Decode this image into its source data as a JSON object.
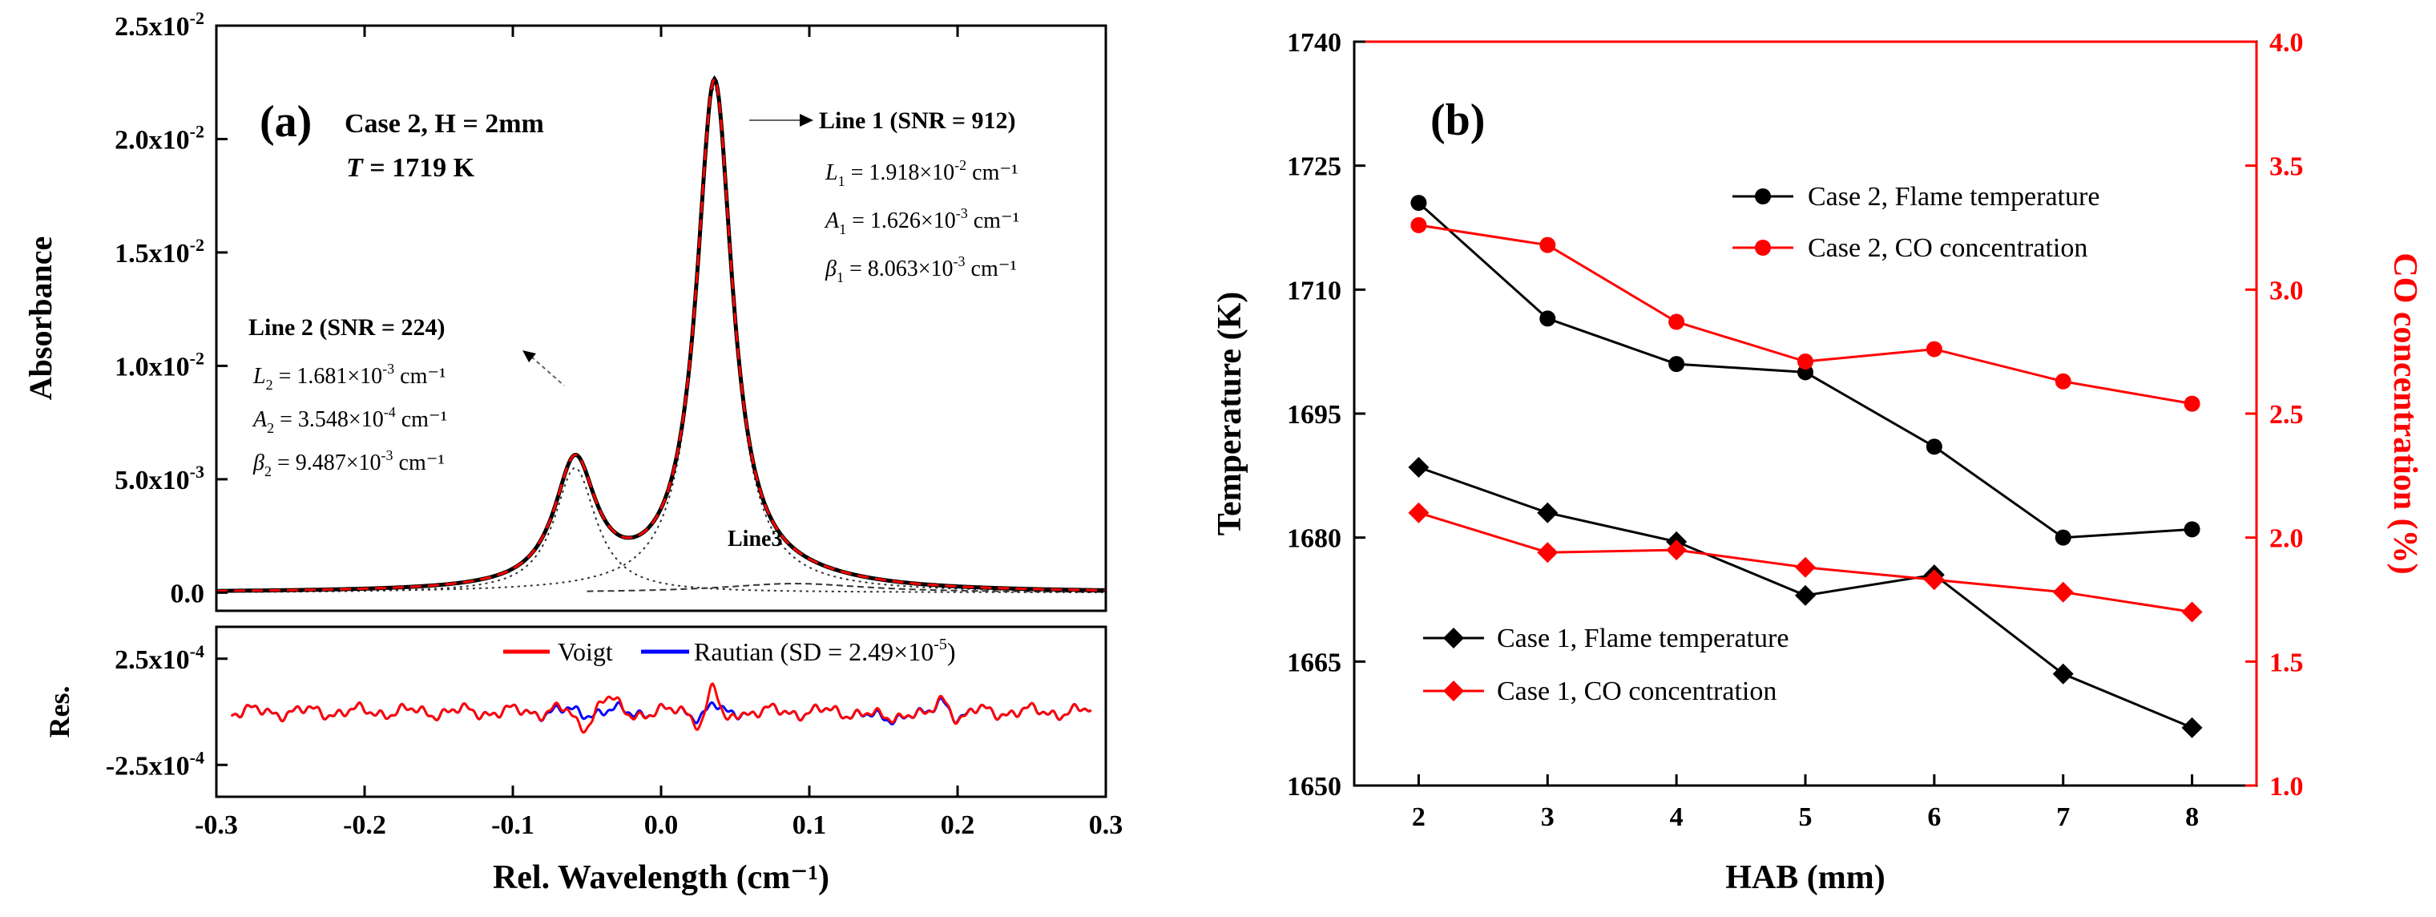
{
  "chart_data": [
    {
      "panel_label": "(a)",
      "type": "line",
      "xlabel": "Rel. Wavelength (cm⁻¹)",
      "ylabel": "Absorbance",
      "xlim": [
        -0.3,
        0.3
      ],
      "ylim": [
        -0.0008,
        0.025
      ],
      "x_ticks": [
        "-0.3",
        "-0.2",
        "-0.1",
        "0.0",
        "0.1",
        "0.2",
        "0.3"
      ],
      "y_ticks": [
        {
          "base": "0.0",
          "exp": ""
        },
        {
          "base": "5.0x10",
          "exp": "-3"
        },
        {
          "base": "1.0x10",
          "exp": "-2"
        },
        {
          "base": "1.5x10",
          "exp": "-2"
        },
        {
          "base": "2.0x10",
          "exp": "-2"
        },
        {
          "base": "2.5x10",
          "exp": "-2"
        }
      ],
      "annotations": {
        "case": "Case 2, H = 2mm",
        "temp_var": "T",
        "temp_val": " = 1719 K",
        "line1_title": "Line 1 (SNR = 912)",
        "line1_params": [
          {
            "sym": "L",
            "sub": "1",
            "val": " = 1.918×10",
            "exp": "-2",
            "unit": " cm⁻¹"
          },
          {
            "sym": "A",
            "sub": "1",
            "val": " = 1.626×10",
            "exp": "-3",
            "unit": " cm⁻¹"
          },
          {
            "sym": "β",
            "sub": "1",
            "val": " = 8.063×10",
            "exp": "-3",
            "unit": " cm⁻¹"
          }
        ],
        "line2_title": "Line 2 (SNR = 224)",
        "line2_params": [
          {
            "sym": "L",
            "sub": "2",
            "val": " = 1.681×10",
            "exp": "-3",
            "unit": " cm⁻¹"
          },
          {
            "sym": "A",
            "sub": "2",
            "val": " = 3.548×10",
            "exp": "-4",
            "unit": " cm⁻¹"
          },
          {
            "sym": "β",
            "sub": "2",
            "val": " = 9.487×10",
            "exp": "-3",
            "unit": " cm⁻¹"
          }
        ],
        "line3": "Line3"
      },
      "peaks": [
        {
          "name": "Line 1",
          "center": 0.036,
          "amplitude": 0.0223,
          "hwhm": 0.0147
        },
        {
          "name": "Line 2",
          "center": -0.058,
          "amplitude": 0.0055,
          "hwhm": 0.017
        },
        {
          "name": "Line3",
          "center": 0.09,
          "amplitude": 0.0004,
          "hwhm": 0.06
        }
      ],
      "series_colors": {
        "measured": "#000000",
        "fit": "#ff0000",
        "components": "#333333"
      },
      "residual": {
        "ylabel": "Res.",
        "y_ticks": [
          {
            "base": "2.5x10",
            "exp": "-4"
          },
          {
            "base": "-2.5x10",
            "exp": "-4"
          }
        ],
        "ylim": [
          -0.0004,
          0.0004
        ],
        "legend": {
          "voigt": "Voigt",
          "rautian": "Rautian (SD = 2.49×10",
          "rautian_exp": "-5",
          "rautian_close": ")"
        },
        "colors": {
          "voigt": "#ff0000",
          "rautian": "#0000ff"
        }
      }
    },
    {
      "panel_label": "(b)",
      "type": "line",
      "xlabel": "HAB (mm)",
      "ylabel": "Temperature (K)",
      "y2label": "CO concentration (%)",
      "x": [
        2,
        3,
        4,
        5,
        6,
        7,
        8
      ],
      "xlim": [
        1.5,
        8.5
      ],
      "ylim": [
        1650,
        1740
      ],
      "y2lim": [
        1.0,
        4.0
      ],
      "y_ticks": [
        "1650",
        "1665",
        "1680",
        "1695",
        "1710",
        "1725",
        "1740"
      ],
      "y2_ticks": [
        "1.0",
        "1.5",
        "2.0",
        "2.5",
        "3.0",
        "3.5",
        "4.0"
      ],
      "series": [
        {
          "name": "Case 2, Flame temperature",
          "axis": "left",
          "marker": "circle",
          "color": "#000000",
          "values": [
            1720.5,
            1706.5,
            1701,
            1700,
            1691,
            1680,
            1681
          ]
        },
        {
          "name": "Case 2, CO concentration",
          "axis": "right",
          "marker": "circle",
          "color": "#ff0000",
          "values": [
            3.26,
            3.18,
            2.87,
            2.71,
            2.76,
            2.63,
            2.54
          ]
        },
        {
          "name": "Case 1, Flame temperature",
          "axis": "left",
          "marker": "diamond",
          "color": "#000000",
          "values": [
            1688.5,
            1683,
            1679.5,
            1673,
            1675.5,
            1663.5,
            1657
          ]
        },
        {
          "name": "Case 1, CO concentration",
          "axis": "right",
          "marker": "diamond",
          "color": "#ff0000",
          "values": [
            2.1,
            1.94,
            1.95,
            1.88,
            1.83,
            1.78,
            1.7
          ]
        }
      ],
      "legend_groups": [
        "upper-right",
        "lower-left"
      ]
    }
  ]
}
